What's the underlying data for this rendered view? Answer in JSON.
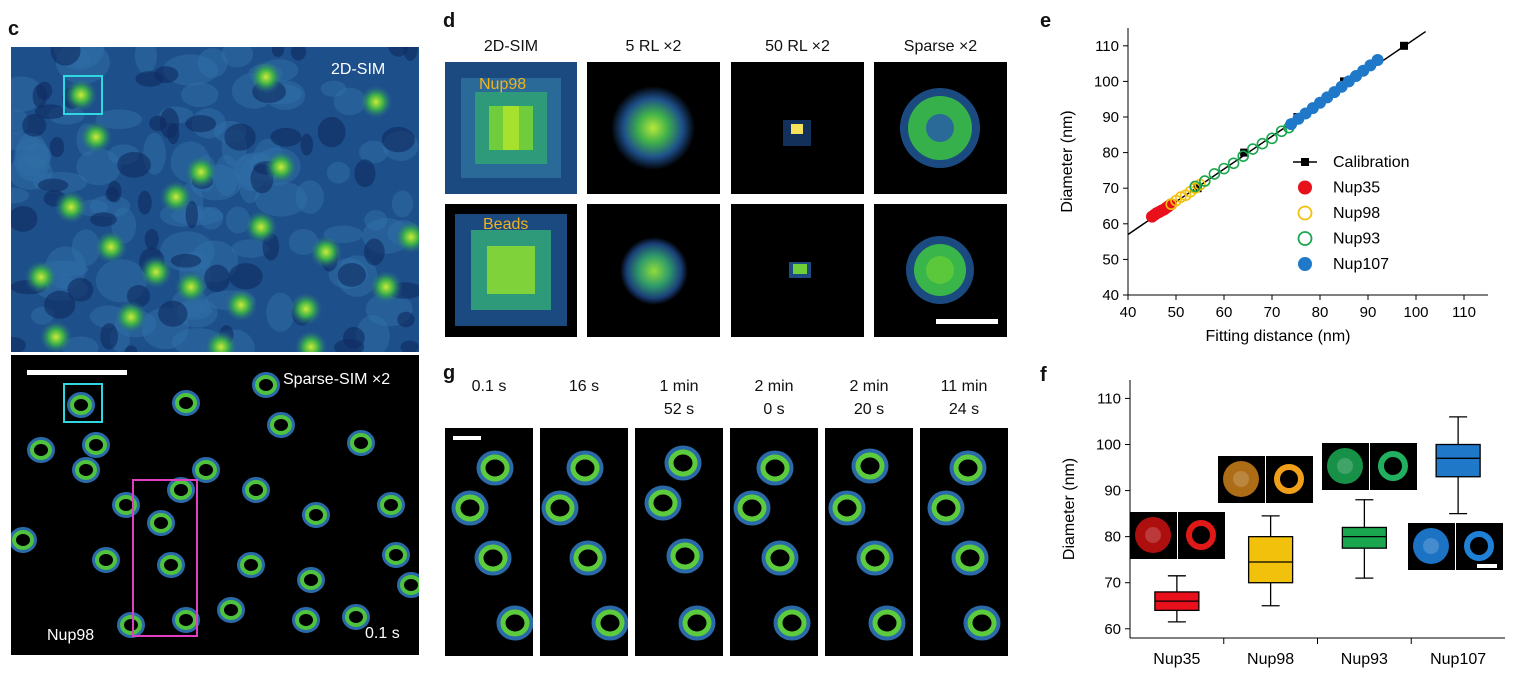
{
  "panel_c": {
    "label": "c",
    "top_label": "2D-SIM",
    "bottom_label": "Sparse-SIM ×2",
    "protein_label": "Nup98",
    "time_label": "0.1 s"
  },
  "panel_d": {
    "label": "d",
    "columns": [
      "2D-SIM",
      "5 RL ×2",
      "50 RL ×2",
      "Sparse ×2"
    ],
    "row_labels": [
      "Nup98",
      "Beads"
    ]
  },
  "panel_g": {
    "label": "g",
    "times": [
      [
        "0.1 s",
        ""
      ],
      [
        "16 s",
        ""
      ],
      [
        "1 min",
        "52 s"
      ],
      [
        "2 min",
        "0 s"
      ],
      [
        "2 min",
        "20 s"
      ],
      [
        "11 min",
        "24 s"
      ]
    ]
  },
  "colors": {
    "nup35": "#e8101a",
    "nup98": "#f2c10c",
    "nup93": "#1aa64f",
    "nup107": "#1f78c8",
    "calibration": "#000000",
    "scale_bar": "#ffffff",
    "roi_cyan": "#2fd8e0",
    "roi_magenta": "#e040c0"
  },
  "chart_data": [
    {
      "panel": "e",
      "type": "scatter",
      "xlabel": "Fitting distance (nm)",
      "ylabel": "Diameter (nm)",
      "xlim": [
        40,
        115
      ],
      "ylim": [
        40,
        115
      ],
      "xticks": [
        40,
        50,
        60,
        70,
        80,
        90,
        100,
        110
      ],
      "yticks": [
        40,
        50,
        60,
        70,
        80,
        90,
        100,
        110
      ],
      "legend_position": "bottom-right",
      "fit_line": {
        "x": [
          40,
          102
        ],
        "y": [
          57,
          114
        ]
      },
      "series": [
        {
          "name": "Calibration",
          "marker": "square-line",
          "x": [
            54.5,
            64.2,
            75.3,
            85,
            97.5
          ],
          "y": [
            70,
            80,
            90,
            100,
            110
          ]
        },
        {
          "name": "Nup35",
          "marker": "filled-circle",
          "x": [
            45,
            45.5,
            46,
            46.5,
            47,
            47.5,
            48,
            48.5,
            49
          ],
          "y": [
            62,
            62.5,
            63,
            63.3,
            63.7,
            64,
            64.5,
            65,
            65.5
          ]
        },
        {
          "name": "Nup98",
          "marker": "open-circle",
          "x": [
            49,
            50,
            51,
            52,
            53,
            54,
            55,
            56
          ],
          "y": [
            65.5,
            66.5,
            67.5,
            68,
            69,
            70,
            71,
            72
          ]
        },
        {
          "name": "Nup93",
          "marker": "open-circle",
          "x": [
            54,
            56,
            58,
            60,
            62,
            64,
            66,
            68,
            70,
            72,
            73.5
          ],
          "y": [
            70.5,
            72,
            74,
            75.5,
            77,
            79,
            81,
            82.5,
            84,
            86,
            87
          ]
        },
        {
          "name": "Nup107",
          "marker": "filled-circle",
          "x": [
            74,
            75.5,
            77,
            78.5,
            80,
            81.5,
            83,
            84.5,
            86,
            87.5,
            89,
            90.5,
            92
          ],
          "y": [
            88,
            89.5,
            91,
            92.5,
            94,
            95.5,
            97,
            98.5,
            100,
            101.5,
            103,
            104.5,
            106
          ]
        }
      ]
    },
    {
      "panel": "f",
      "type": "box",
      "ylabel": "Diameter (nm)",
      "ylim": [
        58,
        114
      ],
      "yticks": [
        60,
        70,
        80,
        90,
        100,
        110
      ],
      "categories": [
        "Nup35",
        "Nup98",
        "Nup93",
        "Nup107"
      ],
      "boxes": [
        {
          "name": "Nup35",
          "min": 61.5,
          "q1": 64,
          "median": 66,
          "q3": 68,
          "max": 71.5
        },
        {
          "name": "Nup98",
          "min": 65,
          "q1": 70,
          "median": 74.5,
          "q3": 80,
          "max": 84.5
        },
        {
          "name": "Nup93",
          "min": 71,
          "q1": 77.5,
          "median": 80,
          "q3": 82,
          "max": 88
        },
        {
          "name": "Nup107",
          "min": 85,
          "q1": 93,
          "median": 97,
          "q3": 100,
          "max": 106
        }
      ]
    }
  ]
}
